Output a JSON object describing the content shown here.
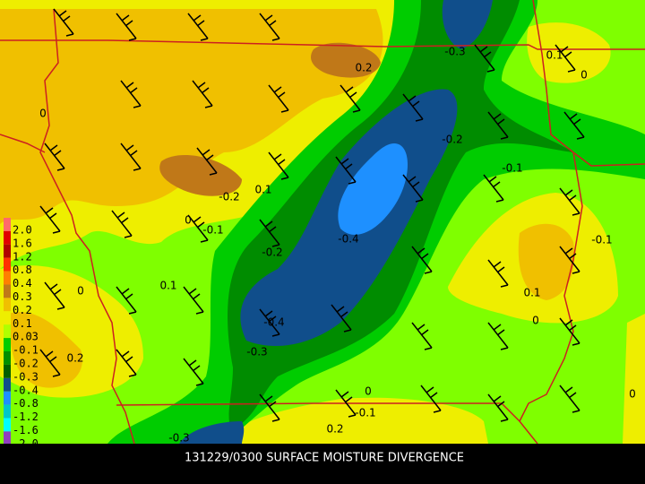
{
  "caption": "131229/0300 SURFACE MOISTURE DIVERGENCE",
  "legend": [
    "2.0",
    "1.6",
    "1.2",
    "0.8",
    "0.4",
    "0.3",
    "0.2",
    "0.1",
    "0.03",
    "-0.1",
    "-0.2",
    "-0.3",
    "-0.4",
    "-0.8",
    "-1.2",
    "-1.6",
    "-2.0"
  ],
  "contour_labels": [
    "0.2",
    "-0.3",
    "0.1",
    "0",
    "0",
    "-0.2",
    "-0.1",
    "-0.2",
    "0.1",
    "0",
    "-0.1",
    "-0.4",
    "-0.1",
    "-0.2",
    "0",
    "0.1",
    "0.1",
    "-0.4",
    "0",
    "-0.3",
    "0.2",
    "0",
    "0",
    "-0.1",
    "0.2",
    "-0.3"
  ]
}
